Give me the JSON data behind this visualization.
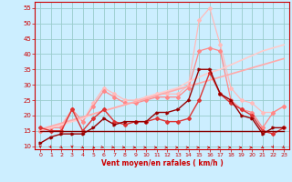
{
  "x": [
    0,
    1,
    2,
    3,
    4,
    5,
    6,
    7,
    8,
    9,
    10,
    11,
    12,
    13,
    14,
    15,
    16,
    17,
    18,
    19,
    20,
    21,
    22,
    23
  ],
  "bg_color": "#cceeff",
  "grid_color": "#99cccc",
  "line_lightest": [
    15,
    16,
    17,
    22,
    18,
    24,
    29,
    27,
    25,
    25,
    26,
    27,
    27,
    27,
    30,
    51,
    55,
    43,
    29,
    25,
    24,
    21,
    21,
    23
  ],
  "line_light": [
    15,
    16,
    16,
    22,
    18,
    23,
    28,
    26,
    24,
    24,
    25,
    26,
    26,
    26,
    29,
    41,
    42,
    41,
    25,
    22,
    21,
    16,
    21,
    23
  ],
  "line_slope1": [
    15.5,
    16.5,
    17.5,
    18.5,
    19.5,
    20.5,
    21.5,
    22.5,
    23.5,
    24.5,
    25.5,
    26.5,
    27.5,
    28.5,
    29.5,
    30.5,
    31.5,
    32.5,
    33.5,
    34.5,
    35.5,
    36.5,
    37.5,
    38.5
  ],
  "line_slope2": [
    15,
    16,
    17,
    18,
    19,
    20.5,
    21.5,
    22.5,
    23.5,
    24.5,
    26,
    27,
    28,
    29,
    31,
    32.5,
    34,
    35,
    36.5,
    38,
    39.5,
    41,
    42,
    43
  ],
  "line_mid": [
    16,
    15,
    15,
    22,
    15,
    19,
    22,
    18,
    17,
    18,
    18,
    19,
    18,
    18,
    19,
    25,
    34,
    27,
    24,
    22,
    20,
    15,
    14,
    16
  ],
  "line_dark1": [
    11,
    13,
    14,
    14,
    14,
    16,
    19,
    17,
    18,
    18,
    18,
    21,
    21,
    22,
    25,
    35,
    35,
    27,
    25,
    20,
    19,
    14,
    16,
    16
  ],
  "line_dark2": [
    15,
    15,
    15,
    15,
    15,
    15,
    15,
    15,
    15,
    15,
    15,
    15,
    15,
    15,
    15,
    15,
    15,
    15,
    15,
    15,
    15,
    15,
    15,
    15
  ],
  "xlabel": "Vent moyen/en rafales ( km/h )",
  "ylim": [
    9,
    57
  ],
  "yticks": [
    10,
    15,
    20,
    25,
    30,
    35,
    40,
    45,
    50,
    55
  ],
  "xticks": [
    0,
    1,
    2,
    3,
    4,
    5,
    6,
    7,
    8,
    9,
    10,
    11,
    12,
    13,
    14,
    15,
    16,
    17,
    18,
    19,
    20,
    21,
    22,
    23
  ],
  "col_lightest": "#ffbbbb",
  "col_light": "#ff8888",
  "col_slope1": "#ffaaaa",
  "col_slope2": "#ffcccc",
  "col_mid": "#dd3333",
  "col_dark1": "#990000",
  "col_dark2": "#880000",
  "arrow_dirs": [
    0,
    10,
    20,
    0,
    30,
    45,
    55,
    60,
    65,
    75,
    80,
    80,
    80,
    85,
    85,
    90,
    90,
    85,
    85,
    90,
    90,
    30,
    10,
    20
  ]
}
